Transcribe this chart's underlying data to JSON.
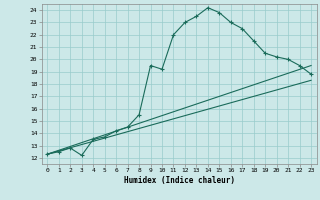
{
  "title": "",
  "xlabel": "Humidex (Indice chaleur)",
  "ylabel": "",
  "xlim": [
    -0.5,
    23.5
  ],
  "ylim": [
    11.5,
    24.5
  ],
  "xticks": [
    0,
    1,
    2,
    3,
    4,
    5,
    6,
    7,
    8,
    9,
    10,
    11,
    12,
    13,
    14,
    15,
    16,
    17,
    18,
    19,
    20,
    21,
    22,
    23
  ],
  "yticks": [
    12,
    13,
    14,
    15,
    16,
    17,
    18,
    19,
    20,
    21,
    22,
    23,
    24
  ],
  "bg_color": "#cce8e8",
  "line_color": "#1a6b5a",
  "grid_color": "#99cccc",
  "line1_x": [
    0,
    1,
    2,
    3,
    4,
    5,
    6,
    7,
    8,
    9,
    10,
    11,
    12,
    13,
    14,
    15,
    16,
    17,
    18,
    19,
    20,
    21,
    22,
    23
  ],
  "line1_y": [
    12.3,
    12.5,
    12.8,
    12.2,
    13.5,
    13.7,
    14.2,
    14.5,
    15.5,
    19.5,
    19.2,
    22.0,
    23.0,
    23.5,
    24.2,
    23.8,
    23.0,
    22.5,
    21.5,
    20.5,
    20.2,
    20.0,
    19.5,
    18.8
  ],
  "line2_x": [
    0,
    23
  ],
  "line2_y": [
    12.3,
    19.5
  ],
  "line3_x": [
    0,
    23
  ],
  "line3_y": [
    12.3,
    18.3
  ]
}
